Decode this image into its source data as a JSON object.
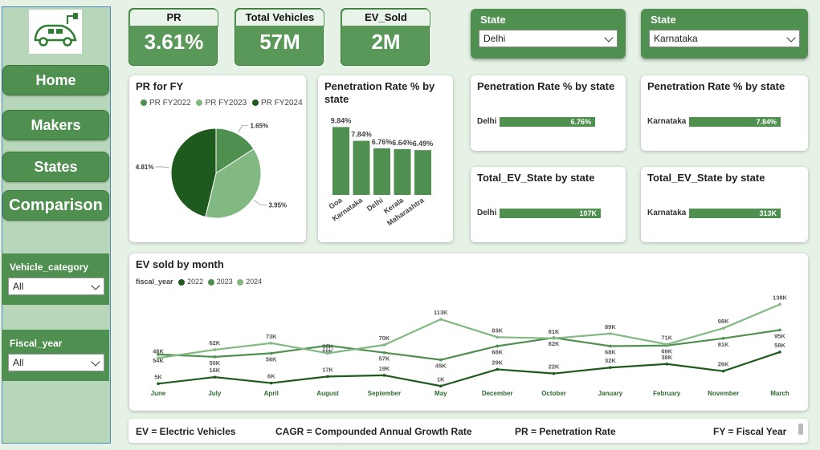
{
  "nav": {
    "items": [
      {
        "label": "Home"
      },
      {
        "label": "Makers"
      },
      {
        "label": "States"
      },
      {
        "label": "Comparison"
      }
    ]
  },
  "filters": {
    "vehicle_category": {
      "label": "Vehicle_category",
      "value": "All"
    },
    "fiscal_year": {
      "label": "Fiscal_year",
      "value": "All"
    }
  },
  "kpis": [
    {
      "title": "PR",
      "value": "3.61%"
    },
    {
      "title": "Total Vehicles",
      "value": "57M"
    },
    {
      "title": "EV_Sold",
      "value": "2M"
    }
  ],
  "slicers": [
    {
      "label": "State",
      "value": "Delhi"
    },
    {
      "label": "State",
      "value": "Karnataka"
    }
  ],
  "state_cards": {
    "pr_delhi": {
      "title": "Penetration Rate % by state",
      "label": "Delhi",
      "value": "6.76%"
    },
    "pr_karnataka": {
      "title": "Penetration Rate % by state",
      "label": "Karnataka",
      "value": "7.84%"
    },
    "ev_delhi": {
      "title": "Total_EV_State by state",
      "label": "Delhi",
      "value": "107K"
    },
    "ev_karnataka": {
      "title": "Total_EV_State by state",
      "label": "Karnataka",
      "value": "313K"
    }
  },
  "footer": {
    "ev": "EV = Electric Vehicles",
    "cagr": "CAGR = Compounded Annual Growth Rate",
    "pr": "PR = Penetration Rate",
    "fy": "FY = Fiscal Year"
  },
  "colors": {
    "dark": "#1e5a1e",
    "mid": "#4f8f4f",
    "light": "#82b882"
  },
  "chart_data": [
    {
      "type": "pie",
      "title": "PR for FY",
      "labels": [
        "PR FY2022",
        "PR FY2023",
        "PR FY2024"
      ],
      "values": [
        1.65,
        3.95,
        4.81
      ],
      "value_labels": [
        "1.65%",
        "3.95%",
        "4.81%"
      ],
      "colors": [
        "#4f8f4f",
        "#82b882",
        "#1e5a1e"
      ],
      "legend": "top"
    },
    {
      "type": "bar",
      "title": "Penetration Rate % by state",
      "categories": [
        "Goa",
        "Karnataka",
        "Delhi",
        "Kerala",
        "Maharashtra"
      ],
      "values": [
        9.84,
        7.84,
        6.76,
        6.64,
        6.49
      ],
      "value_labels": [
        "9.84%",
        "7.84%",
        "6.76%",
        "6.64%",
        "6.49%"
      ],
      "ylim": [
        0,
        10
      ]
    },
    {
      "type": "line",
      "title": "EV sold by month",
      "legend_title": "fiscal_year",
      "categories": [
        "June",
        "July",
        "April",
        "August",
        "September",
        "May",
        "December",
        "October",
        "January",
        "February",
        "November",
        "March"
      ],
      "series": [
        {
          "name": "2022",
          "color": "#1e5a1e",
          "values": [
            5,
            16,
            6,
            17,
            19,
            1,
            29,
            22,
            32,
            38,
            26,
            58
          ],
          "labels": [
            "5K",
            "16K",
            "6K",
            "17K",
            "19K",
            "1K",
            "29K",
            "22K",
            "32K",
            "38K",
            "26K",
            "58K"
          ]
        },
        {
          "name": "2023",
          "color": "#4f8f4f",
          "values": [
            54,
            50,
            56,
            69,
            57,
            45,
            68,
            82,
            68,
            69,
            81,
            95
          ],
          "labels": [
            "54K",
            "50K",
            "56K",
            "69K",
            "57K",
            "45K",
            "68K",
            "82K",
            "68K",
            "69K",
            "81K",
            "95K"
          ]
        },
        {
          "name": "2024",
          "color": "#82b882",
          "values": [
            48,
            62,
            73,
            56,
            70,
            113,
            83,
            81,
            89,
            71,
            98,
            138
          ],
          "labels": [
            "48K",
            "62K",
            "73K",
            "56K",
            "70K",
            "113K",
            "83K",
            "81K",
            "89K",
            "71K",
            "98K",
            "138K"
          ]
        }
      ],
      "ylim": [
        0,
        140
      ],
      "legend": "top-left"
    }
  ]
}
